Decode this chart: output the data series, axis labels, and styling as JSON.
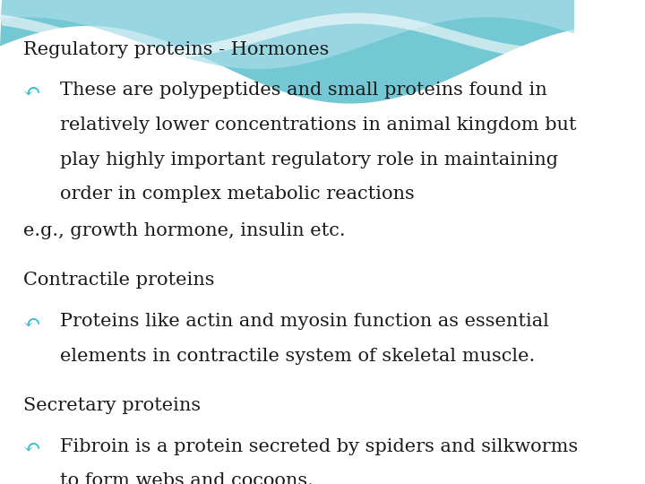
{
  "bg_color": "#ffffff",
  "wave_color_dark": "#5bbfcc",
  "wave_color_light": "#a8dde9",
  "wave_color_white": "#ffffff",
  "text_color": "#1a1a1a",
  "bullet_color": "#3bbccc",
  "title1": "Regulatory proteins - Hormones",
  "bullet1_icon": "↶",
  "bullet1_line1": "These are polypeptides and small proteins found in",
  "bullet1_line2": "relatively lower concentrations in animal kingdom but",
  "bullet1_line3": "play highly important regulatory role in maintaining",
  "bullet1_line4": "order in complex metabolic reactions",
  "eg_line": "e.g., growth hormone, insulin etc.",
  "title2": "Contractile proteins",
  "bullet2_icon": "↶",
  "bullet2_line1": "Proteins like actin and myosin function as essential",
  "bullet2_line2": "elements in contractile system of skeletal muscle.",
  "title3": "Secretary proteins",
  "bullet3_icon": "↶",
  "bullet3_line1": "Fibroin is a protein secreted by spiders and silkworms",
  "bullet3_line2": "to form webs and cocoons.",
  "font_size_title": 15,
  "font_size_body": 15,
  "font_size_eg": 15
}
